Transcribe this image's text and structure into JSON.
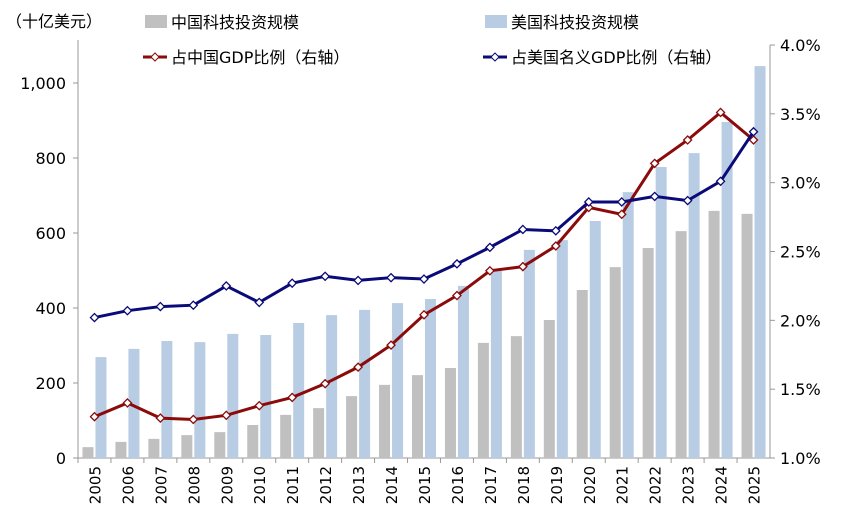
{
  "chart_data": {
    "type": "bar+line",
    "unit_label": "（十亿美元）",
    "categories": [
      "2005",
      "2006",
      "2007",
      "2008",
      "2009",
      "2010",
      "2011",
      "2012",
      "2013",
      "2014",
      "2015",
      "2016",
      "2017",
      "2018",
      "2019",
      "2020",
      "2021",
      "2022",
      "2023",
      "2024",
      "2025"
    ],
    "left_axis": {
      "range": [
        0,
        1100
      ],
      "ticks": [
        0,
        200,
        400,
        600,
        800,
        1000
      ],
      "tick_labels": [
        "0",
        "200",
        "400",
        "600",
        "800",
        "1,000"
      ]
    },
    "right_axis": {
      "range": [
        1.0,
        4.0
      ],
      "ticks": [
        1.0,
        1.5,
        2.0,
        2.5,
        3.0,
        3.5,
        4.0
      ],
      "tick_labels": [
        "1.0%",
        "1.5%",
        "2.0%",
        "2.5%",
        "3.0%",
        "3.5%",
        "4.0%"
      ]
    },
    "grid": false,
    "legend_placement": "top",
    "series": [
      {
        "name": "中国科技投资规模",
        "kind": "bar",
        "axis": "left",
        "color": "#c0c0c0",
        "values": [
          29,
          43,
          51,
          61,
          69,
          88,
          115,
          133,
          165,
          195,
          221,
          240,
          307,
          325,
          368,
          448,
          509,
          560,
          605,
          659,
          651
        ]
      },
      {
        "name": "美国科技投资规模",
        "kind": "bar",
        "axis": "left",
        "color": "#b8cce4",
        "values": [
          269,
          291,
          312,
          309,
          331,
          328,
          360,
          381,
          395,
          413,
          424,
          459,
          501,
          555,
          581,
          632,
          709,
          776,
          813,
          896,
          1045
        ]
      },
      {
        "name": "占中国GDP比例（右轴）",
        "kind": "line",
        "axis": "right",
        "color": "#8b0a0a",
        "values": [
          1.3,
          1.4,
          1.29,
          1.28,
          1.31,
          1.38,
          1.44,
          1.54,
          1.66,
          1.82,
          2.04,
          2.18,
          2.36,
          2.39,
          2.54,
          2.82,
          2.77,
          3.14,
          3.31,
          3.51,
          3.31
        ]
      },
      {
        "name": "占美国名义GDP比例（右轴）",
        "kind": "line",
        "axis": "right",
        "color": "#0a0a78",
        "values": [
          2.02,
          2.07,
          2.1,
          2.11,
          2.25,
          2.13,
          2.27,
          2.32,
          2.29,
          2.31,
          2.3,
          2.41,
          2.53,
          2.66,
          2.65,
          2.86,
          2.86,
          2.9,
          2.87,
          3.01,
          3.37
        ]
      }
    ]
  }
}
